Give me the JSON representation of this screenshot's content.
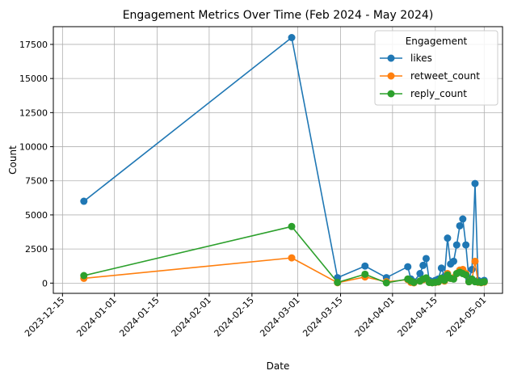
{
  "chart_data": {
    "type": "line",
    "title": "Engagement Metrics Over Time (Feb 2024 - May 2024)",
    "xlabel": "Date",
    "ylabel": "Count",
    "xlim": [
      "2023-12-12",
      "2024-05-07"
    ],
    "ylim": [
      -750,
      18800
    ],
    "xticks": [
      "2023-12-15",
      "2024-01-01",
      "2024-01-15",
      "2024-02-01",
      "2024-02-15",
      "2024-03-01",
      "2024-03-15",
      "2024-04-01",
      "2024-04-15",
      "2024-05-01"
    ],
    "yticks": [
      0,
      2500,
      5000,
      7500,
      10000,
      12500,
      15000,
      17500
    ],
    "grid": true,
    "legend": {
      "title": "Engagement",
      "position": "top-right"
    },
    "x": [
      "2023-12-22",
      "2024-02-28",
      "2024-03-14",
      "2024-03-23",
      "2024-03-30",
      "2024-04-06",
      "2024-04-07",
      "2024-04-08",
      "2024-04-10",
      "2024-04-11",
      "2024-04-12",
      "2024-04-13",
      "2024-04-14",
      "2024-04-15",
      "2024-04-16",
      "2024-04-17",
      "2024-04-18",
      "2024-04-19",
      "2024-04-20",
      "2024-04-21",
      "2024-04-22",
      "2024-04-23",
      "2024-04-24",
      "2024-04-25",
      "2024-04-26",
      "2024-04-27",
      "2024-04-28",
      "2024-04-29",
      "2024-04-30",
      "2024-05-01"
    ],
    "series": [
      {
        "name": "likes",
        "color": "#1f77b4",
        "values": [
          6000,
          18000,
          400,
          1250,
          400,
          1200,
          300,
          100,
          700,
          1300,
          1800,
          200,
          100,
          200,
          300,
          1100,
          500,
          3300,
          1400,
          1600,
          2800,
          4200,
          4700,
          2800,
          300,
          1000,
          7300,
          200,
          100,
          200
        ]
      },
      {
        "name": "retweet_count",
        "color": "#ff7f0e",
        "values": [
          350,
          1850,
          30,
          450,
          100,
          250,
          60,
          20,
          150,
          250,
          350,
          60,
          30,
          50,
          80,
          300,
          150,
          700,
          350,
          400,
          700,
          950,
          1000,
          700,
          100,
          250,
          1600,
          60,
          30,
          70
        ]
      },
      {
        "name": "reply_count",
        "color": "#2ca02c",
        "values": [
          550,
          4150,
          50,
          650,
          20,
          300,
          150,
          50,
          150,
          300,
          380,
          50,
          30,
          60,
          100,
          350,
          200,
          600,
          350,
          300,
          700,
          800,
          700,
          600,
          100,
          300,
          100,
          80,
          50,
          100
        ]
      }
    ]
  }
}
